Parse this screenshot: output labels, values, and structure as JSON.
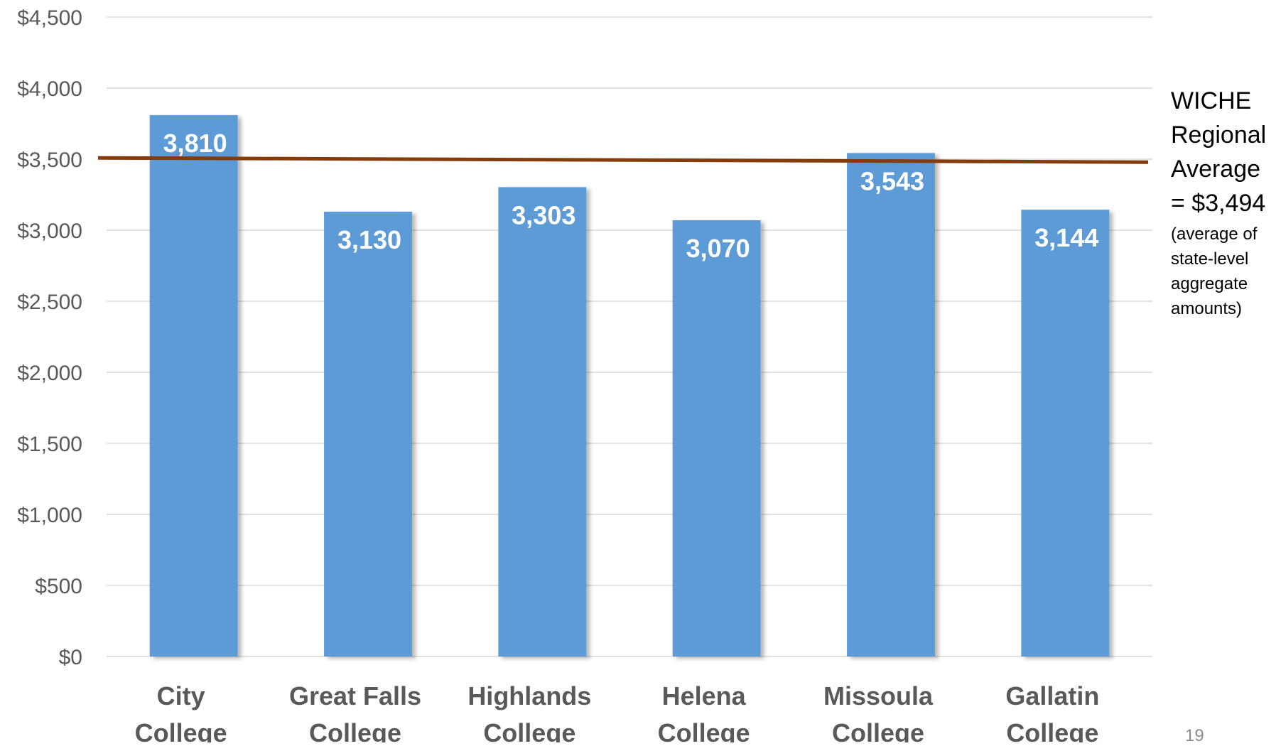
{
  "chart_data": {
    "type": "bar",
    "categories": [
      [
        "City",
        "College"
      ],
      [
        "Great Falls",
        "College"
      ],
      [
        "Highlands",
        "College"
      ],
      [
        "Helena",
        "College"
      ],
      [
        "Missoula",
        "College"
      ],
      [
        "Gallatin",
        "College"
      ]
    ],
    "values": [
      3810,
      3130,
      3303,
      3070,
      3543,
      3144
    ],
    "data_labels": [
      "3,810",
      "3,130",
      "3,303",
      "3,070",
      "3,543",
      "3,144"
    ],
    "ylim": [
      0,
      4500
    ],
    "yticks": [
      0,
      500,
      1000,
      1500,
      2000,
      2500,
      3000,
      3500,
      4000,
      4500
    ],
    "ytick_labels": [
      "$0",
      "$500",
      "$1,000",
      "$1,500",
      "$2,000",
      "$2,500",
      "$3,000",
      "$3,500",
      "$4,000",
      "$4,500"
    ],
    "grid": true,
    "bar_color": "#5b9bd5",
    "reference_line": {
      "value": 3494,
      "color": "#843c0c",
      "label": "WICHE\nRegional\nAverage\n= $3,494",
      "sublabel": "(average of\nstate-level\naggregate\namounts)"
    }
  },
  "page_number": "19"
}
